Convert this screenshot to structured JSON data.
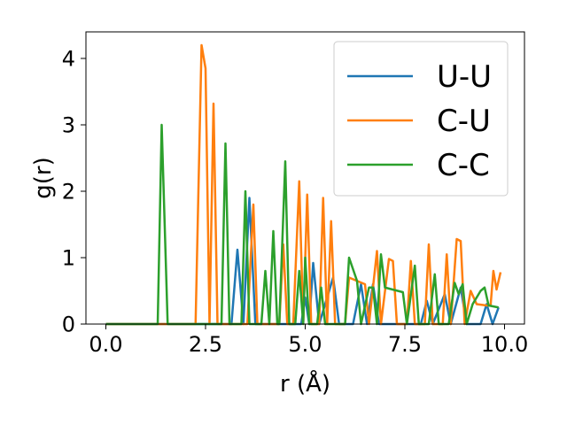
{
  "chart_data": {
    "type": "line",
    "title": "",
    "xlabel": "r (Å)",
    "ylabel": "g(r)",
    "xlim": [
      -0.5,
      10.5
    ],
    "ylim": [
      0,
      4.4
    ],
    "x_ticks": [
      0.0,
      2.5,
      5.0,
      7.5,
      10.0
    ],
    "x_tick_labels": [
      "0.0",
      "2.5",
      "5.0",
      "7.5",
      "10.0"
    ],
    "y_ticks": [
      0,
      1,
      2,
      3,
      4
    ],
    "y_tick_labels": [
      "0",
      "1",
      "2",
      "3",
      "4"
    ],
    "grid": false,
    "legend": "top-right",
    "series": [
      {
        "name": "U-U",
        "color": "#1f77b4",
        "points": [
          [
            0,
            0
          ],
          [
            3.15,
            0
          ],
          [
            3.3,
            1.12
          ],
          [
            3.45,
            0
          ],
          [
            3.6,
            1.9
          ],
          [
            3.75,
            0
          ],
          [
            4.9,
            0
          ],
          [
            5.0,
            0.4
          ],
          [
            5.1,
            0
          ],
          [
            5.2,
            0.92
          ],
          [
            5.35,
            0
          ],
          [
            5.7,
            0.7
          ],
          [
            5.85,
            0
          ],
          [
            6.2,
            0
          ],
          [
            6.4,
            0.6
          ],
          [
            6.55,
            0
          ],
          [
            6.7,
            0.6
          ],
          [
            6.85,
            0
          ],
          [
            7.9,
            0
          ],
          [
            8.05,
            0.35
          ],
          [
            8.2,
            0
          ],
          [
            8.5,
            0.45
          ],
          [
            8.65,
            0
          ],
          [
            8.9,
            0.55
          ],
          [
            9.05,
            0
          ],
          [
            9.4,
            0
          ],
          [
            9.55,
            0.3
          ],
          [
            9.7,
            0
          ],
          [
            9.85,
            0.25
          ]
        ]
      },
      {
        "name": "C-U",
        "color": "#ff7f0e",
        "points": [
          [
            0,
            0
          ],
          [
            2.25,
            0
          ],
          [
            2.4,
            4.2
          ],
          [
            2.5,
            3.85
          ],
          [
            2.6,
            0
          ],
          [
            2.7,
            3.32
          ],
          [
            2.8,
            0
          ],
          [
            3.55,
            0
          ],
          [
            3.7,
            1.8
          ],
          [
            3.8,
            0
          ],
          [
            4.35,
            0
          ],
          [
            4.45,
            1.2
          ],
          [
            4.55,
            0
          ],
          [
            4.7,
            0
          ],
          [
            4.85,
            2.15
          ],
          [
            4.95,
            0
          ],
          [
            5.05,
            1.95
          ],
          [
            5.15,
            0
          ],
          [
            5.35,
            0
          ],
          [
            5.45,
            1.9
          ],
          [
            5.55,
            0
          ],
          [
            5.65,
            1.55
          ],
          [
            5.75,
            0
          ],
          [
            6.0,
            0
          ],
          [
            6.1,
            0.7
          ],
          [
            6.5,
            0.6
          ],
          [
            6.6,
            0
          ],
          [
            6.8,
            1.1
          ],
          [
            6.9,
            0
          ],
          [
            7.1,
            0.98
          ],
          [
            7.2,
            0.95
          ],
          [
            7.3,
            0
          ],
          [
            7.55,
            0
          ],
          [
            7.65,
            0.95
          ],
          [
            7.75,
            0
          ],
          [
            8.0,
            0
          ],
          [
            8.1,
            1.2
          ],
          [
            8.2,
            0
          ],
          [
            8.45,
            0
          ],
          [
            8.55,
            1.05
          ],
          [
            8.65,
            0
          ],
          [
            8.8,
            1.28
          ],
          [
            8.9,
            1.25
          ],
          [
            9.0,
            0
          ],
          [
            9.15,
            0.5
          ],
          [
            9.3,
            0.3
          ],
          [
            9.55,
            0.28
          ],
          [
            9.65,
            0.28
          ],
          [
            9.72,
            0.8
          ],
          [
            9.8,
            0.52
          ],
          [
            9.9,
            0.78
          ]
        ]
      },
      {
        "name": "C-C",
        "color": "#2ca02c",
        "points": [
          [
            0,
            0
          ],
          [
            1.3,
            0
          ],
          [
            1.4,
            3.0
          ],
          [
            1.55,
            0
          ],
          [
            2.9,
            0
          ],
          [
            3.0,
            2.72
          ],
          [
            3.1,
            0
          ],
          [
            3.4,
            0
          ],
          [
            3.5,
            2.0
          ],
          [
            3.6,
            0
          ],
          [
            3.9,
            0
          ],
          [
            4.0,
            0.8
          ],
          [
            4.1,
            0
          ],
          [
            4.2,
            1.4
          ],
          [
            4.3,
            0
          ],
          [
            4.35,
            0
          ],
          [
            4.5,
            2.45
          ],
          [
            4.6,
            0
          ],
          [
            4.75,
            0
          ],
          [
            4.85,
            0.8
          ],
          [
            4.95,
            0
          ],
          [
            5.0,
            1.0
          ],
          [
            5.1,
            0
          ],
          [
            5.3,
            0
          ],
          [
            5.4,
            0.55
          ],
          [
            5.5,
            0
          ],
          [
            6.0,
            0
          ],
          [
            6.1,
            1.0
          ],
          [
            6.3,
            0.65
          ],
          [
            6.4,
            0
          ],
          [
            6.6,
            0.55
          ],
          [
            6.7,
            0.55
          ],
          [
            6.8,
            0
          ],
          [
            6.9,
            1.05
          ],
          [
            7.0,
            0.55
          ],
          [
            7.45,
            0.48
          ],
          [
            7.55,
            0
          ],
          [
            7.75,
            0.88
          ],
          [
            7.85,
            0
          ],
          [
            8.1,
            0
          ],
          [
            8.25,
            0.75
          ],
          [
            8.35,
            0
          ],
          [
            8.6,
            0
          ],
          [
            8.75,
            0.62
          ],
          [
            8.85,
            0.45
          ],
          [
            8.95,
            0.6
          ],
          [
            9.05,
            0
          ],
          [
            9.2,
            0.3
          ],
          [
            9.4,
            0.5
          ],
          [
            9.5,
            0.55
          ],
          [
            9.6,
            0.28
          ],
          [
            9.85,
            0.25
          ]
        ]
      }
    ]
  }
}
